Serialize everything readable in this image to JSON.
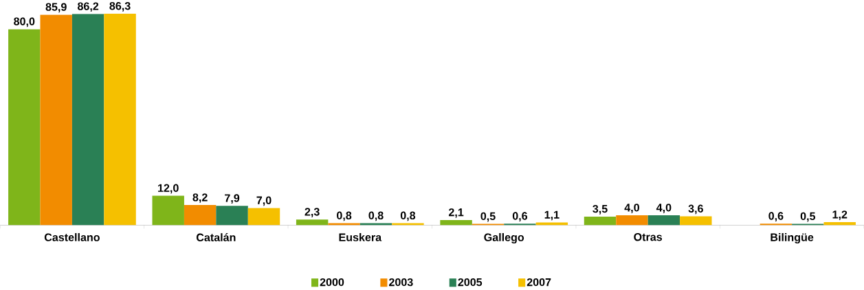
{
  "chart_data": {
    "type": "bar",
    "categories": [
      "Castellano",
      "Catalán",
      "Euskera",
      "Gallego",
      "Otras",
      "Bilingüe"
    ],
    "series": [
      {
        "name": "2000",
        "color": "#7fb51a",
        "values": [
          80.0,
          12.0,
          2.3,
          2.1,
          3.5,
          null
        ],
        "value_labels": [
          "80,0",
          "12,0",
          "2,3",
          "2,1",
          "3,5",
          null
        ]
      },
      {
        "name": "2003",
        "color": "#f28c00",
        "values": [
          85.9,
          8.2,
          0.8,
          0.5,
          4.0,
          0.6
        ],
        "value_labels": [
          "85,9",
          "8,2",
          "0,8",
          "0,5",
          "4,0",
          "0,6"
        ]
      },
      {
        "name": "2005",
        "color": "#2a8055",
        "values": [
          86.2,
          7.9,
          0.8,
          0.6,
          4.0,
          0.5
        ],
        "value_labels": [
          "86,2",
          "7,9",
          "0,8",
          "0,6",
          "4,0",
          "0,5"
        ]
      },
      {
        "name": "2007",
        "color": "#f5c000",
        "values": [
          86.3,
          7.0,
          0.8,
          1.1,
          3.6,
          1.2
        ],
        "value_labels": [
          "86,3",
          "7,0",
          "0,8",
          "1,1",
          "3,6",
          "1,2"
        ]
      }
    ],
    "legend": "bottom"
  }
}
